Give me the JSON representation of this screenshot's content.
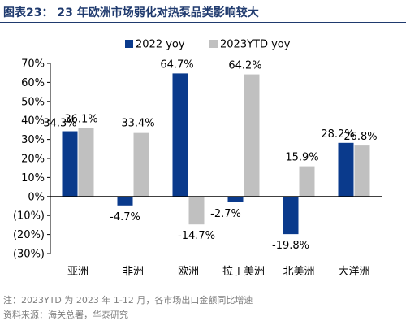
{
  "header": {
    "title": "图表23： 23 年欧洲市场弱化对热泵品类影响较大"
  },
  "chart_data": {
    "type": "bar",
    "title": "",
    "xlabel": "",
    "ylabel": "",
    "categories": [
      "亚洲",
      "非洲",
      "欧洲",
      "拉丁美洲",
      "北美洲",
      "大洋洲"
    ],
    "series": [
      {
        "name": "2022 yoy",
        "color": "#0a3a8c",
        "values": [
          34.3,
          -4.7,
          64.7,
          -2.7,
          -19.8,
          28.2
        ],
        "labels": [
          "34.3%",
          "-4.7%",
          "64.7%",
          "-2.7%",
          "-19.8%",
          "28.2%"
        ]
      },
      {
        "name": "2023YTD yoy",
        "color": "#c0c0c0",
        "values": [
          36.1,
          33.4,
          -14.7,
          64.2,
          15.9,
          26.8
        ],
        "labels": [
          "36.1%",
          "33.4%",
          "-14.7%",
          "64.2%",
          "15.9%",
          "26.8%"
        ]
      }
    ],
    "ylim": [
      -30,
      70
    ],
    "yticks": [
      70,
      60,
      50,
      40,
      30,
      20,
      10,
      0,
      -10,
      -20,
      -30
    ],
    "ytick_labels": [
      "70%",
      "60%",
      "50%",
      "40%",
      "30%",
      "20%",
      "10%",
      "0%",
      "(10%)",
      "(20%)",
      "(30%)"
    ],
    "legend_position": "top-center",
    "grid": false
  },
  "footer": {
    "note": "注：2023YTD 为 2023 年 1-12 月，各市场出口金额同比增速",
    "source": "资料来源：海关总署，华泰研究"
  }
}
